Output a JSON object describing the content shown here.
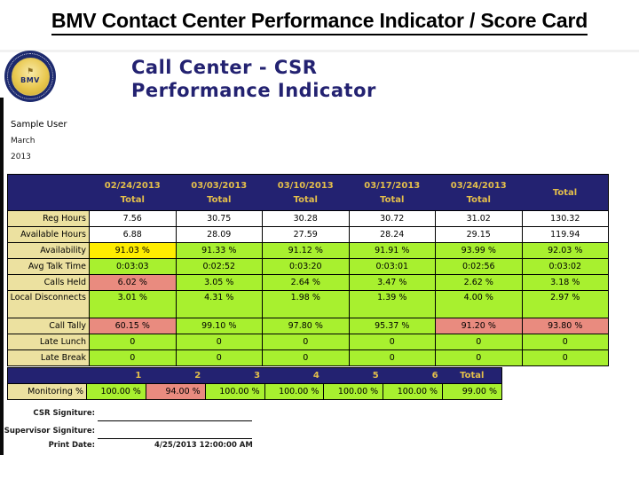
{
  "page_title": "BMV Contact Center Performance Indicator / Score Card",
  "report": {
    "heading_line1": "Call Center - CSR",
    "heading_line2": "Performance Indicator",
    "user": "Sample User",
    "month": "March",
    "year": "2013",
    "logo_text": "BMV",
    "logo_torch_icon": "torch"
  },
  "colors": {
    "navy": "#232271",
    "gold": "#e3be4b",
    "label_bg": "#ece1a0",
    "green": "#a8f02f",
    "red": "#e98b7f",
    "yellow": "#ffed00",
    "white": "#ffffff"
  },
  "main_table": {
    "columns": [
      {
        "label": "02/24/2013",
        "sub": "Total"
      },
      {
        "label": "03/03/2013",
        "sub": "Total"
      },
      {
        "label": "03/10/2013",
        "sub": "Total"
      },
      {
        "label": "03/17/2013",
        "sub": "Total"
      },
      {
        "label": "03/24/2013",
        "sub": "Total"
      },
      {
        "label": "Total",
        "sub": ""
      }
    ],
    "rows": [
      {
        "label": "Reg Hours",
        "tall": false,
        "values": [
          "7.56",
          "30.75",
          "30.28",
          "30.72",
          "31.02",
          "130.32"
        ],
        "colors": [
          "white",
          "white",
          "white",
          "white",
          "white",
          "white"
        ]
      },
      {
        "label": "Available Hours",
        "tall": false,
        "values": [
          "6.88",
          "28.09",
          "27.59",
          "28.24",
          "29.15",
          "119.94"
        ],
        "colors": [
          "white",
          "white",
          "white",
          "white",
          "white",
          "white"
        ]
      },
      {
        "label": "Availability",
        "tall": false,
        "values": [
          "91.03 %",
          "91.33 %",
          "91.12 %",
          "91.91 %",
          "93.99 %",
          "92.03 %"
        ],
        "colors": [
          "yellow",
          "green",
          "green",
          "green",
          "green",
          "green"
        ]
      },
      {
        "label": "Avg Talk Time",
        "tall": false,
        "values": [
          "0:03:03",
          "0:02:52",
          "0:03:20",
          "0:03:01",
          "0:02:56",
          "0:03:02"
        ],
        "colors": [
          "green",
          "green",
          "green",
          "green",
          "green",
          "green"
        ]
      },
      {
        "label": "Calls Held",
        "tall": false,
        "values": [
          "6.02 %",
          "3.05 %",
          "2.64 %",
          "3.47 %",
          "2.62 %",
          "3.18 %"
        ],
        "colors": [
          "red",
          "green",
          "green",
          "green",
          "green",
          "green"
        ]
      },
      {
        "label": "Local Disconnects",
        "tall": true,
        "values": [
          "3.01 %",
          "4.31 %",
          "1.98 %",
          "1.39 %",
          "4.00 %",
          "2.97 %"
        ],
        "colors": [
          "green",
          "green",
          "green",
          "green",
          "green",
          "green"
        ]
      },
      {
        "label": "Call Tally",
        "tall": false,
        "values": [
          "60.15 %",
          "99.10 %",
          "97.80 %",
          "95.37 %",
          "91.20 %",
          "93.80 %"
        ],
        "colors": [
          "red",
          "green",
          "green",
          "green",
          "red",
          "red"
        ]
      },
      {
        "label": "Late Lunch",
        "tall": false,
        "values": [
          "0",
          "0",
          "0",
          "0",
          "0",
          "0"
        ],
        "colors": [
          "green",
          "green",
          "green",
          "green",
          "green",
          "green"
        ]
      },
      {
        "label": "Late Break",
        "tall": false,
        "values": [
          "0",
          "0",
          "0",
          "0",
          "0",
          "0"
        ],
        "colors": [
          "green",
          "green",
          "green",
          "green",
          "green",
          "green"
        ]
      }
    ]
  },
  "monitoring_table": {
    "columns": [
      "1",
      "2",
      "3",
      "4",
      "5",
      "6",
      "Total"
    ],
    "row_label": "Monitoring %",
    "values": [
      "100.00 %",
      "94.00 %",
      "100.00 %",
      "100.00 %",
      "100.00 %",
      "100.00 %",
      "99.00 %"
    ],
    "colors": [
      "green",
      "red",
      "green",
      "green",
      "green",
      "green",
      "green"
    ]
  },
  "signature": {
    "csr_label": "CSR Signiture:",
    "supervisor_label": "Supervisor Signiture:",
    "print_date_label": "Print Date:",
    "print_date_value": "4/25/2013 12:00:00 AM"
  }
}
